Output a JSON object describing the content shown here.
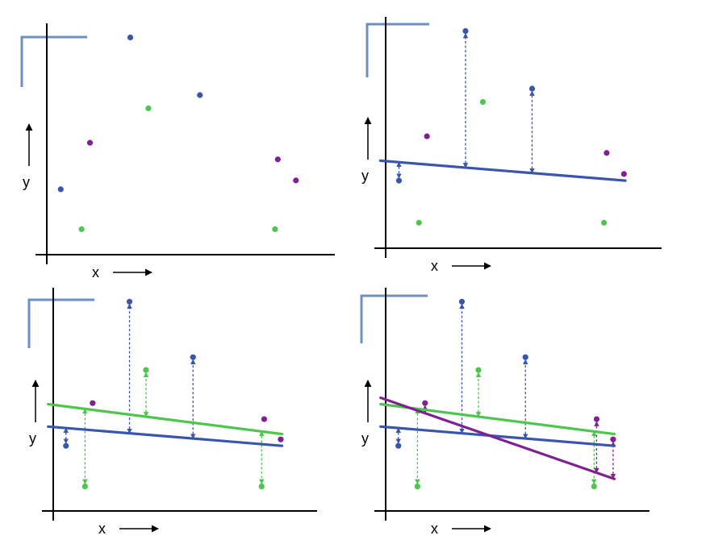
{
  "colors": {
    "blue": "#3a55b0",
    "green": "#4cc64c",
    "purple": "#7d2290",
    "corner": "#6c8fc6",
    "axis": "#000000"
  },
  "chart_data": [
    {
      "type": "scatter",
      "panel": "top-left",
      "xlabel": "x",
      "ylabel": "y",
      "xlim": [
        0,
        10
      ],
      "ylim": [
        0,
        10
      ],
      "points": [
        {
          "x": 0.5,
          "y": 2.95,
          "color": "blue"
        },
        {
          "x": 1.25,
          "y": 1.15,
          "color": "green"
        },
        {
          "x": 1.55,
          "y": 5.05,
          "color": "purple"
        },
        {
          "x": 3.0,
          "y": 9.8,
          "color": "blue"
        },
        {
          "x": 3.65,
          "y": 6.6,
          "color": "green"
        },
        {
          "x": 5.5,
          "y": 7.2,
          "color": "blue"
        },
        {
          "x": 8.3,
          "y": 4.3,
          "color": "purple"
        },
        {
          "x": 8.2,
          "y": 1.15,
          "color": "green"
        },
        {
          "x": 8.95,
          "y": 3.35,
          "color": "purple"
        }
      ],
      "lines": []
    },
    {
      "type": "scatter",
      "panel": "top-right",
      "xlabel": "x",
      "ylabel": "y",
      "xlim": [
        0,
        10
      ],
      "ylim": [
        0,
        10
      ],
      "points": [
        {
          "x": 0.5,
          "y": 3.05,
          "color": "blue"
        },
        {
          "x": 1.25,
          "y": 1.15,
          "color": "green"
        },
        {
          "x": 1.55,
          "y": 5.05,
          "color": "purple"
        },
        {
          "x": 3.0,
          "y": 9.8,
          "color": "blue"
        },
        {
          "x": 3.65,
          "y": 6.6,
          "color": "green"
        },
        {
          "x": 5.5,
          "y": 7.2,
          "color": "blue"
        },
        {
          "x": 8.3,
          "y": 4.3,
          "color": "purple"
        },
        {
          "x": 8.2,
          "y": 1.15,
          "color": "green"
        },
        {
          "x": 8.95,
          "y": 3.35,
          "color": "purple"
        }
      ],
      "lines": [
        {
          "color": "blue",
          "x1": -0.2,
          "y1": 3.95,
          "x2": 9.0,
          "y2": 3.05,
          "residuals": [
            0,
            3,
            5
          ]
        }
      ]
    },
    {
      "type": "scatter",
      "panel": "bottom-left",
      "xlabel": "x",
      "ylabel": "y",
      "xlim": [
        0,
        10
      ],
      "ylim": [
        0,
        10
      ],
      "points": [
        {
          "x": 0.5,
          "y": 3.05,
          "color": "blue"
        },
        {
          "x": 1.25,
          "y": 1.15,
          "color": "green"
        },
        {
          "x": 1.55,
          "y": 5.05,
          "color": "purple"
        },
        {
          "x": 3.0,
          "y": 9.8,
          "color": "blue"
        },
        {
          "x": 3.65,
          "y": 6.6,
          "color": "green"
        },
        {
          "x": 5.5,
          "y": 7.2,
          "color": "blue"
        },
        {
          "x": 8.3,
          "y": 4.3,
          "color": "purple"
        },
        {
          "x": 8.2,
          "y": 1.15,
          "color": "green"
        },
        {
          "x": 8.95,
          "y": 3.35,
          "color": "purple"
        }
      ],
      "lines": [
        {
          "color": "green",
          "x1": -0.2,
          "y1": 5.0,
          "x2": 9.0,
          "y2": 3.6,
          "residuals": [
            1,
            4,
            7
          ]
        },
        {
          "color": "blue",
          "x1": -0.2,
          "y1": 3.95,
          "x2": 9.0,
          "y2": 3.05,
          "residuals": [
            0,
            3,
            5
          ]
        }
      ]
    },
    {
      "type": "scatter",
      "panel": "bottom-right",
      "xlabel": "x",
      "ylabel": "y",
      "xlim": [
        0,
        10
      ],
      "ylim": [
        0,
        10
      ],
      "points": [
        {
          "x": 0.5,
          "y": 3.05,
          "color": "blue"
        },
        {
          "x": 1.25,
          "y": 1.15,
          "color": "green"
        },
        {
          "x": 1.55,
          "y": 5.05,
          "color": "purple"
        },
        {
          "x": 3.0,
          "y": 9.8,
          "color": "blue"
        },
        {
          "x": 3.65,
          "y": 6.6,
          "color": "green"
        },
        {
          "x": 5.5,
          "y": 7.2,
          "color": "blue"
        },
        {
          "x": 8.3,
          "y": 4.3,
          "color": "purple"
        },
        {
          "x": 8.2,
          "y": 1.15,
          "color": "green"
        },
        {
          "x": 8.95,
          "y": 3.35,
          "color": "purple"
        }
      ],
      "lines": [
        {
          "color": "green",
          "x1": -0.2,
          "y1": 5.0,
          "x2": 9.0,
          "y2": 3.6,
          "residuals": [
            1,
            4,
            7
          ]
        },
        {
          "color": "blue",
          "x1": -0.2,
          "y1": 3.95,
          "x2": 9.0,
          "y2": 3.05,
          "residuals": [
            0,
            3,
            5
          ]
        },
        {
          "color": "purple",
          "x1": -0.2,
          "y1": 5.3,
          "x2": 9.0,
          "y2": 1.5,
          "residuals": [
            2,
            6,
            8
          ]
        }
      ]
    }
  ]
}
